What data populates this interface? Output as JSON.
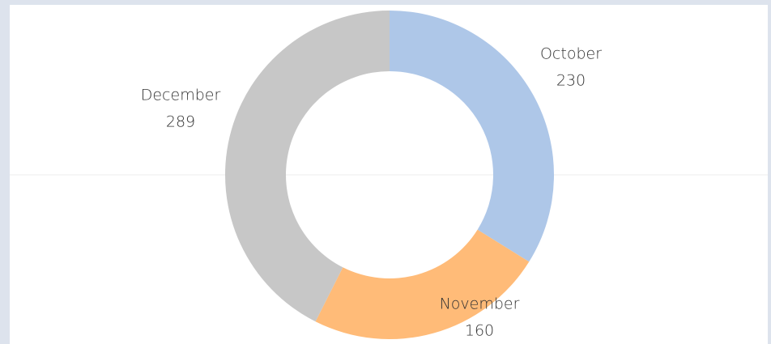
{
  "chart_data": {
    "type": "donut",
    "categories": [
      "October",
      "November",
      "December"
    ],
    "values": [
      230,
      160,
      289
    ],
    "colors": [
      "#aec7e8",
      "#ffbb78",
      "#c7c7c7"
    ]
  }
}
